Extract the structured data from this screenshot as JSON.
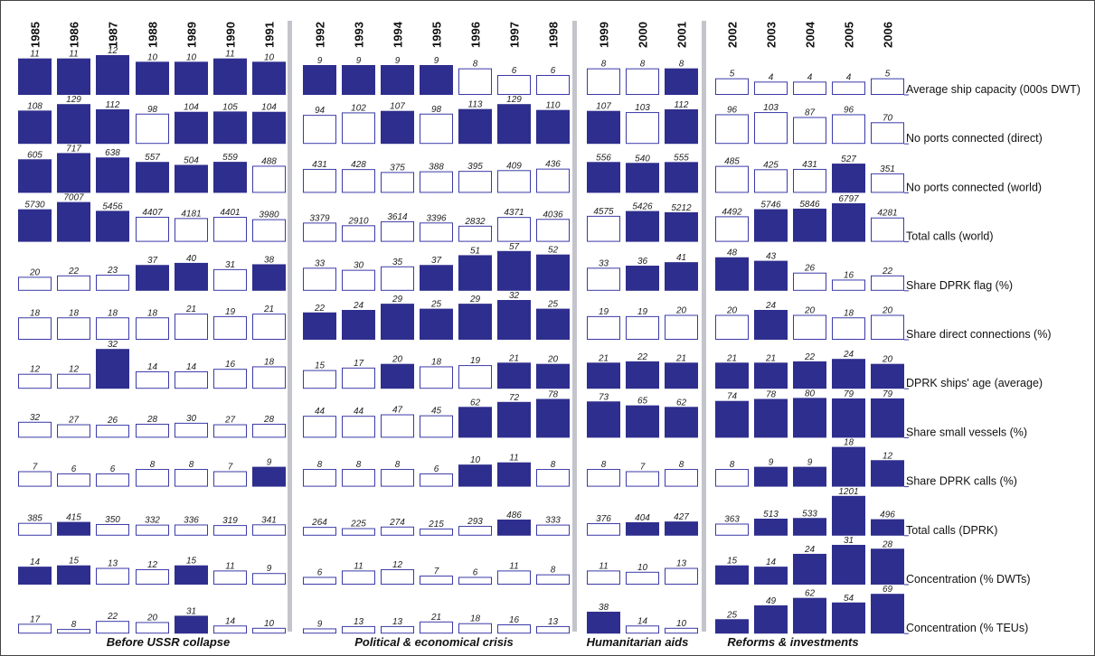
{
  "colors": {
    "filled": "#2e2e8e",
    "outline": "#3a3aa8",
    "separator": "#c4c4cc",
    "baseline": "#3a3aa8"
  },
  "chart_data": {
    "type": "bar",
    "years": [
      1985,
      1986,
      1987,
      1988,
      1989,
      1990,
      1991,
      1992,
      1993,
      1994,
      1995,
      1996,
      1997,
      1998,
      1999,
      2000,
      2001,
      2002,
      2003,
      2004,
      2005,
      2006
    ],
    "periods": [
      {
        "label": "Before USSR collapse",
        "start": 1985,
        "end": 1991
      },
      {
        "label": "Political & economical crisis",
        "start": 1992,
        "end": 1998
      },
      {
        "label": "Humanitarian aids",
        "start": 1999,
        "end": 2001
      },
      {
        "label": "Reforms & investments",
        "start": 2002,
        "end": 2006
      }
    ],
    "series": [
      {
        "name": "Average ship capacity (000s DWT)",
        "values": [
          11,
          11,
          12,
          10,
          10,
          11,
          10,
          9,
          9,
          9,
          9,
          8,
          6,
          6,
          8,
          8,
          8,
          5,
          4,
          4,
          4,
          5
        ],
        "highlight": [
          1,
          1,
          1,
          1,
          1,
          1,
          1,
          1,
          1,
          1,
          1,
          0,
          0,
          0,
          0,
          0,
          1,
          0,
          0,
          0,
          0,
          0
        ]
      },
      {
        "name": "No ports connected (direct)",
        "values": [
          108,
          129,
          112,
          98,
          104,
          105,
          104,
          94,
          102,
          107,
          98,
          113,
          129,
          110,
          107,
          103,
          112,
          96,
          103,
          87,
          96,
          70
        ],
        "highlight": [
          1,
          1,
          1,
          0,
          1,
          1,
          1,
          0,
          0,
          1,
          0,
          1,
          1,
          1,
          1,
          0,
          1,
          0,
          0,
          0,
          0,
          0
        ]
      },
      {
        "name": "No ports connected (world)",
        "values": [
          605,
          717,
          638,
          557,
          504,
          559,
          488,
          431,
          428,
          375,
          388,
          395,
          409,
          436,
          556,
          540,
          555,
          485,
          425,
          431,
          527,
          351
        ],
        "highlight": [
          1,
          1,
          1,
          1,
          1,
          1,
          0,
          0,
          0,
          0,
          0,
          0,
          0,
          0,
          1,
          1,
          1,
          0,
          0,
          0,
          1,
          0
        ]
      },
      {
        "name": "Total calls (world)",
        "values": [
          5730,
          7007,
          5456,
          4407,
          4181,
          4401,
          3980,
          3379,
          2910,
          3614,
          3396,
          2832,
          4371,
          4036,
          4575,
          5426,
          5212,
          4492,
          5746,
          5846,
          6797,
          4281
        ],
        "highlight": [
          1,
          1,
          1,
          0,
          0,
          0,
          0,
          0,
          0,
          0,
          0,
          0,
          0,
          0,
          0,
          1,
          1,
          0,
          1,
          1,
          1,
          0
        ]
      },
      {
        "name": "Share DPRK flag (%)",
        "values": [
          20,
          22,
          23,
          37,
          40,
          31,
          38,
          33,
          30,
          35,
          37,
          51,
          57,
          52,
          33,
          36,
          41,
          48,
          43,
          26,
          16,
          22
        ],
        "highlight": [
          0,
          0,
          0,
          1,
          1,
          0,
          1,
          0,
          0,
          0,
          1,
          1,
          1,
          1,
          0,
          1,
          1,
          1,
          1,
          0,
          0,
          0
        ]
      },
      {
        "name": "Share direct connections (%)",
        "values": [
          18,
          18,
          18,
          18,
          21,
          19,
          21,
          22,
          24,
          29,
          25,
          29,
          32,
          25,
          19,
          19,
          20,
          20,
          24,
          20,
          18,
          20
        ],
        "highlight": [
          0,
          0,
          0,
          0,
          0,
          0,
          0,
          1,
          1,
          1,
          1,
          1,
          1,
          1,
          0,
          0,
          0,
          0,
          1,
          0,
          0,
          0
        ]
      },
      {
        "name": "DPRK ships' age (average)",
        "values": [
          12,
          12,
          32,
          14,
          14,
          16,
          18,
          15,
          17,
          20,
          18,
          19,
          21,
          20,
          21,
          22,
          21,
          21,
          21,
          22,
          24,
          20
        ],
        "highlight": [
          0,
          0,
          1,
          0,
          0,
          0,
          0,
          0,
          0,
          1,
          0,
          0,
          1,
          1,
          1,
          1,
          1,
          1,
          1,
          1,
          1,
          1
        ]
      },
      {
        "name": "Share small vessels (%)",
        "values": [
          32,
          27,
          26,
          28,
          30,
          27,
          28,
          44,
          44,
          47,
          45,
          62,
          72,
          78,
          73,
          65,
          62,
          74,
          78,
          80,
          79,
          79
        ],
        "highlight": [
          0,
          0,
          0,
          0,
          0,
          0,
          0,
          0,
          0,
          0,
          0,
          1,
          1,
          1,
          1,
          1,
          1,
          1,
          1,
          1,
          1,
          1
        ]
      },
      {
        "name": "Share DPRK calls (%)",
        "values": [
          7,
          6,
          6,
          8,
          8,
          7,
          9,
          8,
          8,
          8,
          6,
          10,
          11,
          8,
          8,
          7,
          8,
          8,
          9,
          9,
          18,
          12
        ],
        "highlight": [
          0,
          0,
          0,
          0,
          0,
          0,
          1,
          0,
          0,
          0,
          0,
          1,
          1,
          0,
          0,
          0,
          0,
          0,
          1,
          1,
          1,
          1
        ]
      },
      {
        "name": "Total calls (DPRK)",
        "values": [
          385,
          415,
          350,
          332,
          336,
          319,
          341,
          264,
          225,
          274,
          215,
          293,
          486,
          333,
          376,
          404,
          427,
          363,
          513,
          533,
          1201,
          496
        ],
        "highlight": [
          0,
          1,
          0,
          0,
          0,
          0,
          0,
          0,
          0,
          0,
          0,
          0,
          1,
          0,
          0,
          1,
          1,
          0,
          1,
          1,
          1,
          1
        ]
      },
      {
        "name": "Concentration (% DWTs)",
        "values": [
          14,
          15,
          13,
          12,
          15,
          11,
          9,
          6,
          11,
          12,
          7,
          6,
          11,
          8,
          11,
          10,
          13,
          15,
          14,
          24,
          31,
          28
        ],
        "highlight": [
          1,
          1,
          0,
          0,
          1,
          0,
          0,
          0,
          0,
          0,
          0,
          0,
          0,
          0,
          0,
          0,
          0,
          1,
          1,
          1,
          1,
          1
        ]
      },
      {
        "name": "Concentration (% TEUs)",
        "values": [
          17,
          8,
          22,
          20,
          31,
          14,
          10,
          9,
          13,
          13,
          21,
          18,
          16,
          13,
          38,
          14,
          10,
          25,
          49,
          62,
          54,
          69
        ],
        "highlight": [
          0,
          0,
          0,
          0,
          1,
          0,
          0,
          0,
          0,
          0,
          0,
          0,
          0,
          0,
          1,
          0,
          0,
          1,
          1,
          1,
          1,
          1
        ]
      }
    ]
  }
}
